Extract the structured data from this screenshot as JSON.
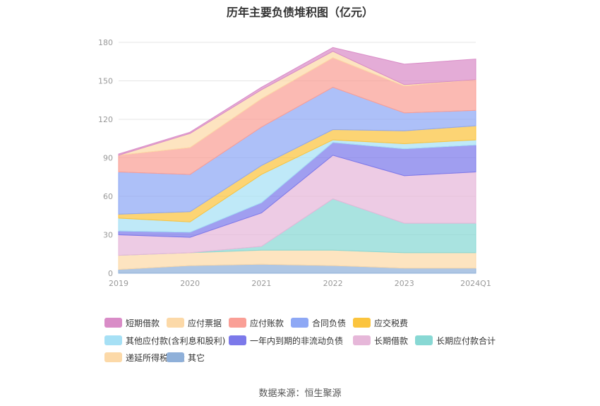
{
  "chart_data": {
    "type": "area",
    "title": "历年主要负债堆积图（亿元）",
    "source": "数据来源：恒生聚源",
    "categories": [
      "2019",
      "2020",
      "2021",
      "2022",
      "2023",
      "2024Q1"
    ],
    "ylim": [
      0,
      180
    ],
    "yticks": [
      "0",
      "30",
      "60",
      "90",
      "120",
      "150",
      "180"
    ],
    "stacked": true,
    "grid": true,
    "legend_position": "bottom",
    "series": [
      {
        "name": "其它",
        "color": "#8fb0d9",
        "values": [
          3,
          6,
          7,
          6,
          4,
          4
        ]
      },
      {
        "name": "递延所得税负债",
        "color": "#fcd9a8",
        "values": [
          11,
          10,
          11,
          12,
          12,
          12
        ]
      },
      {
        "name": "长期应付款合计",
        "color": "#88d8d4",
        "values": [
          0,
          0,
          3,
          40,
          23,
          23
        ]
      },
      {
        "name": "长期借款",
        "color": "#e6b7d9",
        "values": [
          16,
          12,
          26,
          34,
          37,
          40
        ]
      },
      {
        "name": "一年内到期的非流动负债",
        "color": "#7c79ea",
        "values": [
          3,
          4,
          8,
          10,
          21,
          21
        ]
      },
      {
        "name": "其他应付款(含利息和股利)",
        "color": "#a6e0f5",
        "values": [
          10,
          8,
          22,
          2,
          4,
          4
        ]
      },
      {
        "name": "应交税费",
        "color": "#fbc43e",
        "values": [
          3,
          8,
          7,
          8,
          10,
          11
        ]
      },
      {
        "name": "合同负债",
        "color": "#8ea8f5",
        "values": [
          33,
          29,
          30,
          33,
          14,
          12
        ]
      },
      {
        "name": "应付账款",
        "color": "#fa9f96",
        "values": [
          13,
          21,
          22,
          23,
          21,
          24
        ]
      },
      {
        "name": "应付票据",
        "color": "#fcd9a8",
        "values": [
          0,
          11,
          7,
          5,
          1,
          0
        ]
      },
      {
        "name": "短期借款",
        "color": "#d98cc7",
        "values": [
          1,
          1,
          2,
          3,
          16,
          16
        ]
      }
    ],
    "legend_order": [
      "短期借款",
      "应付票据",
      "应付账款",
      "合同负债",
      "应交税费",
      "其他应付款(含利息和股利)",
      "一年内到期的非流动负债",
      "长期借款",
      "长期应付款合计",
      "递延所得税负债",
      "其它"
    ]
  }
}
